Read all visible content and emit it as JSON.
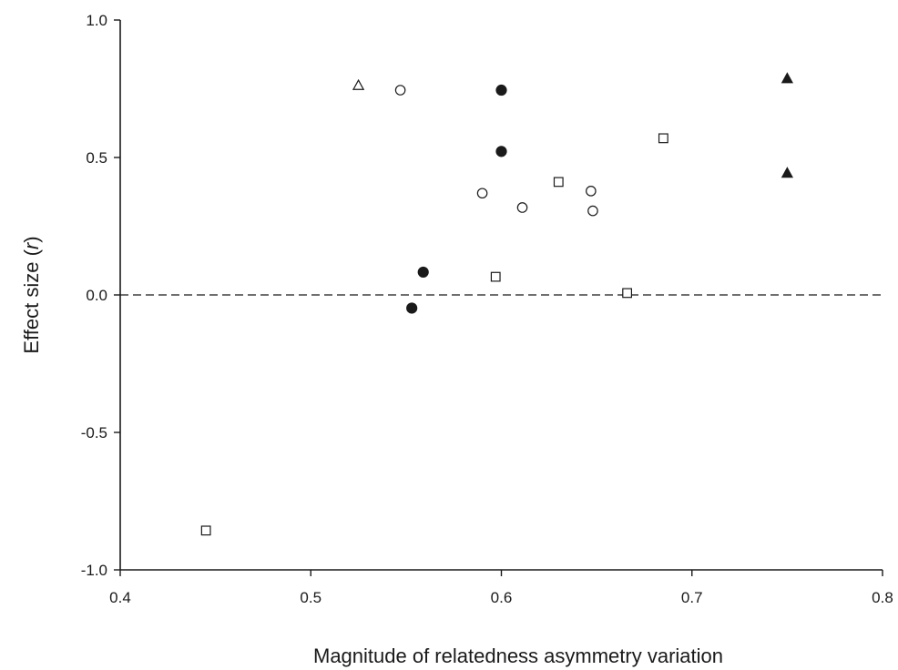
{
  "chart_data": {
    "type": "scatter",
    "title": "",
    "xlabel": "Magnitude of relatedness asymmetry variation",
    "ylabel_main": "Effect size (",
    "ylabel_italic": "r",
    "ylabel_end": ")",
    "xlim": [
      0.4,
      0.8
    ],
    "ylim": [
      -1.0,
      1.0
    ],
    "x_ticks": [
      0.4,
      0.5,
      0.6,
      0.7,
      0.8
    ],
    "x_tick_labels": [
      "0.4",
      "0.5",
      "0.6",
      "0.7",
      "0.8"
    ],
    "y_ticks": [
      -1.0,
      -0.5,
      0.0,
      0.5,
      1.0
    ],
    "y_tick_labels": [
      "-1.0",
      "-0.5",
      "0.0",
      "0.5",
      "1.0"
    ],
    "reference_line": {
      "y": 0.0,
      "style": "dashed"
    },
    "grid": false,
    "series": [
      {
        "marker": "open-circle",
        "points": [
          {
            "x": 0.547,
            "y": 0.745
          },
          {
            "x": 0.59,
            "y": 0.37
          },
          {
            "x": 0.611,
            "y": 0.318
          },
          {
            "x": 0.647,
            "y": 0.378
          },
          {
            "x": 0.648,
            "y": 0.306
          }
        ]
      },
      {
        "marker": "filled-circle",
        "points": [
          {
            "x": 0.6,
            "y": 0.745
          },
          {
            "x": 0.6,
            "y": 0.522
          },
          {
            "x": 0.559,
            "y": 0.083
          },
          {
            "x": 0.553,
            "y": -0.048
          }
        ]
      },
      {
        "marker": "open-square",
        "points": [
          {
            "x": 0.445,
            "y": -0.857
          },
          {
            "x": 0.597,
            "y": 0.066
          },
          {
            "x": 0.63,
            "y": 0.411
          },
          {
            "x": 0.666,
            "y": 0.007
          },
          {
            "x": 0.685,
            "y": 0.57
          }
        ]
      },
      {
        "marker": "open-triangle",
        "points": [
          {
            "x": 0.525,
            "y": 0.762
          }
        ]
      },
      {
        "marker": "filled-triangle",
        "points": [
          {
            "x": 0.75,
            "y": 0.787
          },
          {
            "x": 0.75,
            "y": 0.443
          }
        ]
      }
    ]
  }
}
